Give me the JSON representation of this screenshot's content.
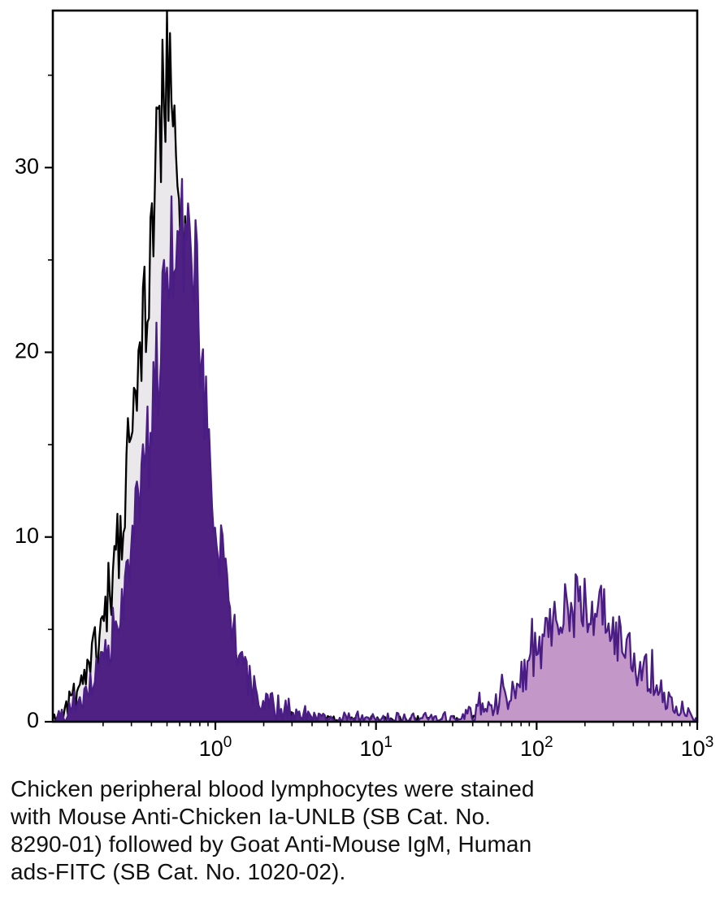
{
  "caption": {
    "lines": [
      "Chicken peripheral blood lymphocytes were stained",
      "with Mouse Anti-Chicken Ia-UNLB (SB Cat. No.",
      "8290-01) followed by Goat Anti-Mouse IgM, Human",
      "ads-FITC (SB Cat. No. 1020-02)."
    ]
  },
  "chart_data": {
    "type": "area",
    "subtype": "flow-cytometry-overlay-histogram",
    "title": "",
    "xlabel": "",
    "ylabel": "",
    "x_scale": "log",
    "x_range_log10": [
      -1.012,
      3.0
    ],
    "y_range": [
      0,
      38.5
    ],
    "x_ticks": [
      {
        "base": "10",
        "exp": "0",
        "exp_value": 0
      },
      {
        "base": "10",
        "exp": "1",
        "exp_value": 1
      },
      {
        "base": "10",
        "exp": "2",
        "exp_value": 2
      },
      {
        "base": "10",
        "exp": "3",
        "exp_value": 3
      }
    ],
    "y_ticks": [
      0,
      10,
      20,
      30
    ],
    "y_minor_ticks": [
      5,
      15,
      25,
      35
    ],
    "grid": false,
    "legend": "none",
    "axis_color": "#000000",
    "noise": {
      "sqrt_coef": 0.75,
      "abs_coef": 0.2,
      "samples": 430,
      "spike_prob": 0.04,
      "spike_amp": 1.1
    },
    "series": [
      {
        "name": "black-outline-control-histogram",
        "stroke": "#000000",
        "fill": "#ebe8ec",
        "seed": 11,
        "peak_x": 0.5,
        "peak_y": 37,
        "envelope": [
          [
            -1.01,
            0.15
          ],
          [
            -0.97,
            0.4
          ],
          [
            -0.93,
            0.8
          ],
          [
            -0.89,
            1.2
          ],
          [
            -0.85,
            1.8
          ],
          [
            -0.81,
            2.4
          ],
          [
            -0.77,
            3.2
          ],
          [
            -0.73,
            4.4
          ],
          [
            -0.69,
            5.8
          ],
          [
            -0.65,
            7.5
          ],
          [
            -0.61,
            9.6
          ],
          [
            -0.57,
            12
          ],
          [
            -0.53,
            15
          ],
          [
            -0.49,
            18
          ],
          [
            -0.45,
            21.5
          ],
          [
            -0.41,
            25
          ],
          [
            -0.37,
            29
          ],
          [
            -0.33,
            33
          ],
          [
            -0.3,
            35
          ],
          [
            -0.27,
            34
          ],
          [
            -0.24,
            31.5
          ],
          [
            -0.21,
            28
          ],
          [
            -0.18,
            24
          ],
          [
            -0.15,
            19.5
          ],
          [
            -0.12,
            15
          ],
          [
            -0.09,
            11
          ],
          [
            -0.06,
            7.5
          ],
          [
            -0.03,
            5
          ],
          [
            0.0,
            3.2
          ],
          [
            0.04,
            2.0
          ],
          [
            0.08,
            1.2
          ],
          [
            0.13,
            0.7
          ],
          [
            0.2,
            0.4
          ],
          [
            0.3,
            0.22
          ],
          [
            0.45,
            0.12
          ],
          [
            0.7,
            0.07
          ],
          [
            1.1,
            0.05
          ],
          [
            1.6,
            0.04
          ],
          [
            2.2,
            0.03
          ],
          [
            3.0,
            0.02
          ]
        ]
      },
      {
        "name": "purple-stained-histogram",
        "stroke": "#4a1d85",
        "fill_dark": "#4e2183",
        "fill_light": "#c398c9",
        "grad_stops": [
          0.4,
          0.53
        ],
        "seed": 29,
        "negative_peak_x": 0.6,
        "negative_peak_y": 29,
        "positive_peak_x": 170,
        "positive_peak_y": 9.3,
        "envelope": [
          [
            -1.01,
            0.12
          ],
          [
            -0.95,
            0.3
          ],
          [
            -0.9,
            0.55
          ],
          [
            -0.85,
            0.9
          ],
          [
            -0.8,
            1.4
          ],
          [
            -0.75,
            2.1
          ],
          [
            -0.7,
            3.0
          ],
          [
            -0.65,
            4.2
          ],
          [
            -0.6,
            5.8
          ],
          [
            -0.55,
            7.8
          ],
          [
            -0.5,
            10.2
          ],
          [
            -0.45,
            13
          ],
          [
            -0.4,
            16.5
          ],
          [
            -0.35,
            20
          ],
          [
            -0.3,
            23.5
          ],
          [
            -0.26,
            26
          ],
          [
            -0.22,
            27.5
          ],
          [
            -0.18,
            27
          ],
          [
            -0.14,
            25
          ],
          [
            -0.1,
            21.5
          ],
          [
            -0.06,
            17.5
          ],
          [
            -0.02,
            13.5
          ],
          [
            0.02,
            10
          ],
          [
            0.06,
            7
          ],
          [
            0.1,
            5
          ],
          [
            0.15,
            3.3
          ],
          [
            0.2,
            2.2
          ],
          [
            0.27,
            1.4
          ],
          [
            0.35,
            0.9
          ],
          [
            0.45,
            0.55
          ],
          [
            0.6,
            0.3
          ],
          [
            0.8,
            0.18
          ],
          [
            1.0,
            0.12
          ],
          [
            1.2,
            0.1
          ],
          [
            1.4,
            0.14
          ],
          [
            1.55,
            0.3
          ],
          [
            1.65,
            0.55
          ],
          [
            1.75,
            1.0
          ],
          [
            1.85,
            1.8
          ],
          [
            1.95,
            2.9
          ],
          [
            2.03,
            4.0
          ],
          [
            2.1,
            5.0
          ],
          [
            2.17,
            5.8
          ],
          [
            2.24,
            6.3
          ],
          [
            2.3,
            6.3
          ],
          [
            2.38,
            5.9
          ],
          [
            2.46,
            5.2
          ],
          [
            2.54,
            4.3
          ],
          [
            2.62,
            3.3
          ],
          [
            2.7,
            2.3
          ],
          [
            2.78,
            1.4
          ],
          [
            2.86,
            0.8
          ],
          [
            2.93,
            0.4
          ],
          [
            3.0,
            0.15
          ]
        ]
      }
    ]
  }
}
